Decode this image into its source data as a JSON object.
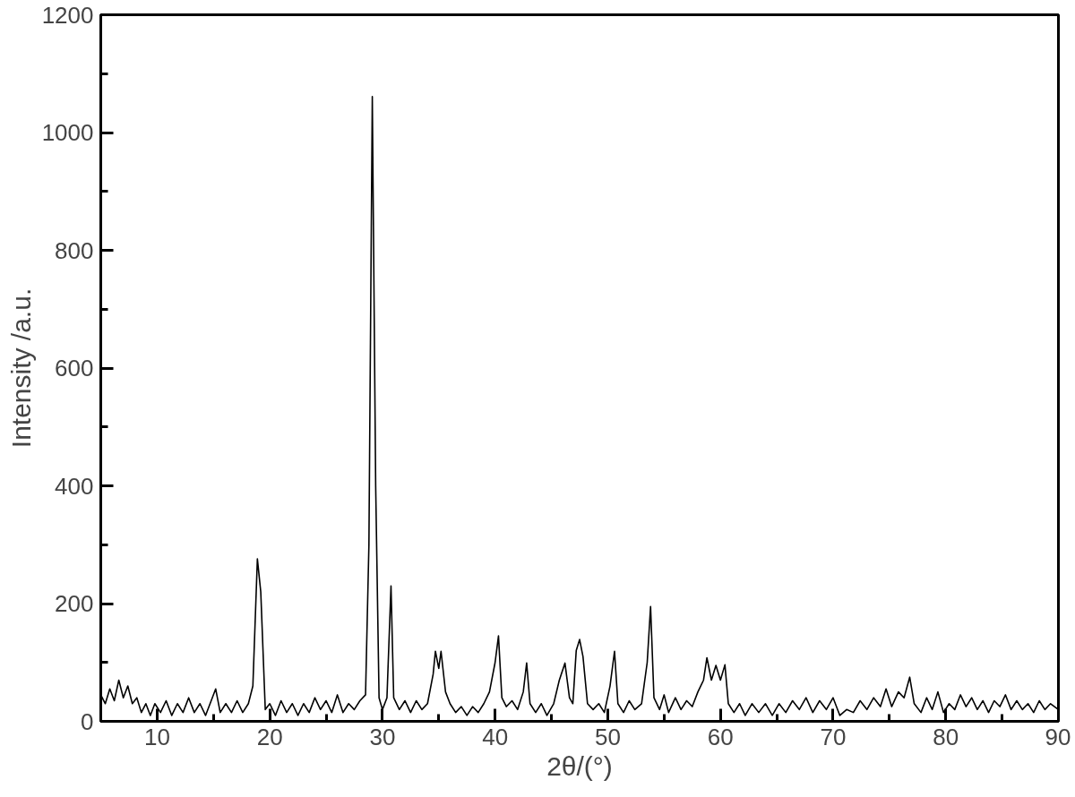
{
  "chart_data": {
    "type": "line",
    "xlabel": "2θ/(°)",
    "ylabel": "Intensity /a.u.",
    "xlim": [
      5,
      90
    ],
    "ylim": [
      0,
      1200
    ],
    "xticks": [
      {
        "value": 5,
        "label": null
      },
      10,
      {
        "value": 15,
        "label": null
      },
      20,
      {
        "value": 25,
        "label": null
      },
      30,
      {
        "value": 35,
        "label": null
      },
      40,
      {
        "value": 45,
        "label": null
      },
      50,
      {
        "value": 55,
        "label": null
      },
      60,
      {
        "value": 65,
        "label": null
      },
      70,
      {
        "value": 75,
        "label": null
      },
      80,
      {
        "value": 85,
        "label": null
      },
      90
    ],
    "yticks": [
      0,
      {
        "value": 100,
        "label": null
      },
      200,
      {
        "value": 300,
        "label": null
      },
      400,
      {
        "value": 500,
        "label": null
      },
      600,
      {
        "value": 700,
        "label": null
      },
      800,
      {
        "value": 900,
        "label": null
      },
      1000,
      {
        "value": 1100,
        "label": null
      },
      1200
    ],
    "line_style": "solid",
    "marker": "none",
    "series": [
      {
        "color": "#000000",
        "x": [
          5.0,
          5.4,
          5.8,
          6.2,
          6.6,
          7.0,
          7.4,
          7.8,
          8.2,
          8.6,
          9.0,
          9.4,
          9.8,
          10.3,
          10.8,
          11.3,
          11.8,
          12.3,
          12.8,
          13.3,
          13.8,
          14.3,
          14.8,
          15.2,
          15.6,
          16.1,
          16.6,
          17.1,
          17.6,
          18.1,
          18.5,
          18.9,
          19.2,
          19.6,
          20.0,
          20.5,
          21.0,
          21.5,
          22.0,
          22.5,
          23.0,
          23.5,
          24.0,
          24.5,
          25.0,
          25.5,
          26.0,
          26.5,
          27.0,
          27.5,
          28.0,
          28.5,
          28.8,
          29.1,
          29.4,
          29.7,
          30.0,
          30.4,
          30.76,
          31.0,
          31.5,
          32.0,
          32.5,
          33.0,
          33.5,
          34.0,
          34.5,
          34.7,
          35.0,
          35.2,
          35.6,
          36.0,
          36.5,
          37.0,
          37.5,
          38.0,
          38.5,
          39.0,
          39.5,
          40.0,
          40.3,
          40.6,
          41.0,
          41.5,
          42.0,
          42.5,
          42.8,
          43.1,
          43.6,
          44.1,
          44.6,
          45.2,
          45.7,
          46.2,
          46.6,
          46.9,
          47.2,
          47.5,
          47.8,
          48.2,
          48.7,
          49.2,
          49.7,
          50.2,
          50.6,
          50.9,
          51.4,
          51.9,
          52.4,
          53.0,
          53.5,
          53.8,
          54.1,
          54.6,
          55.0,
          55.4,
          56.0,
          56.5,
          57.0,
          57.5,
          58.0,
          58.5,
          58.8,
          59.2,
          59.6,
          60.0,
          60.4,
          60.7,
          61.2,
          61.7,
          62.2,
          62.8,
          63.4,
          64.0,
          64.6,
          65.2,
          65.8,
          66.4,
          67.0,
          67.6,
          68.2,
          68.8,
          69.4,
          70.0,
          70.6,
          71.2,
          71.8,
          72.4,
          73.0,
          73.6,
          74.2,
          74.7,
          75.2,
          75.8,
          76.3,
          76.8,
          77.2,
          77.8,
          78.3,
          78.8,
          79.3,
          79.8,
          80.3,
          80.8,
          81.3,
          81.8,
          82.3,
          82.8,
          83.3,
          83.8,
          84.3,
          84.8,
          85.3,
          85.8,
          86.3,
          86.8,
          87.3,
          87.8,
          88.3,
          88.8,
          89.3,
          90.0
        ],
        "values": [
          45,
          30,
          55,
          35,
          70,
          40,
          60,
          30,
          40,
          15,
          30,
          10,
          30,
          15,
          35,
          10,
          30,
          15,
          40,
          15,
          30,
          10,
          35,
          55,
          15,
          30,
          15,
          35,
          15,
          30,
          60,
          276,
          220,
          20,
          30,
          10,
          35,
          15,
          30,
          10,
          30,
          15,
          40,
          20,
          35,
          15,
          45,
          15,
          30,
          20,
          35,
          45,
          300,
          1061,
          400,
          40,
          20,
          40,
          230,
          40,
          20,
          35,
          15,
          35,
          20,
          30,
          80,
          119,
          90,
          119,
          50,
          30,
          15,
          25,
          10,
          25,
          15,
          30,
          50,
          100,
          145,
          40,
          25,
          35,
          20,
          50,
          99,
          30,
          15,
          30,
          10,
          30,
          70,
          99,
          40,
          30,
          120,
          139,
          110,
          30,
          20,
          30,
          15,
          60,
          119,
          30,
          15,
          35,
          20,
          30,
          100,
          195,
          40,
          20,
          45,
          15,
          40,
          20,
          35,
          25,
          50,
          70,
          108,
          70,
          95,
          70,
          96,
          30,
          15,
          30,
          10,
          30,
          15,
          30,
          10,
          30,
          15,
          35,
          20,
          40,
          15,
          35,
          20,
          40,
          10,
          20,
          15,
          35,
          20,
          40,
          25,
          55,
          25,
          50,
          40,
          75,
          30,
          15,
          40,
          20,
          50,
          15,
          30,
          20,
          45,
          25,
          40,
          20,
          35,
          15,
          35,
          25,
          45,
          20,
          35,
          20,
          30,
          15,
          35,
          20,
          30,
          20
        ]
      }
    ]
  }
}
